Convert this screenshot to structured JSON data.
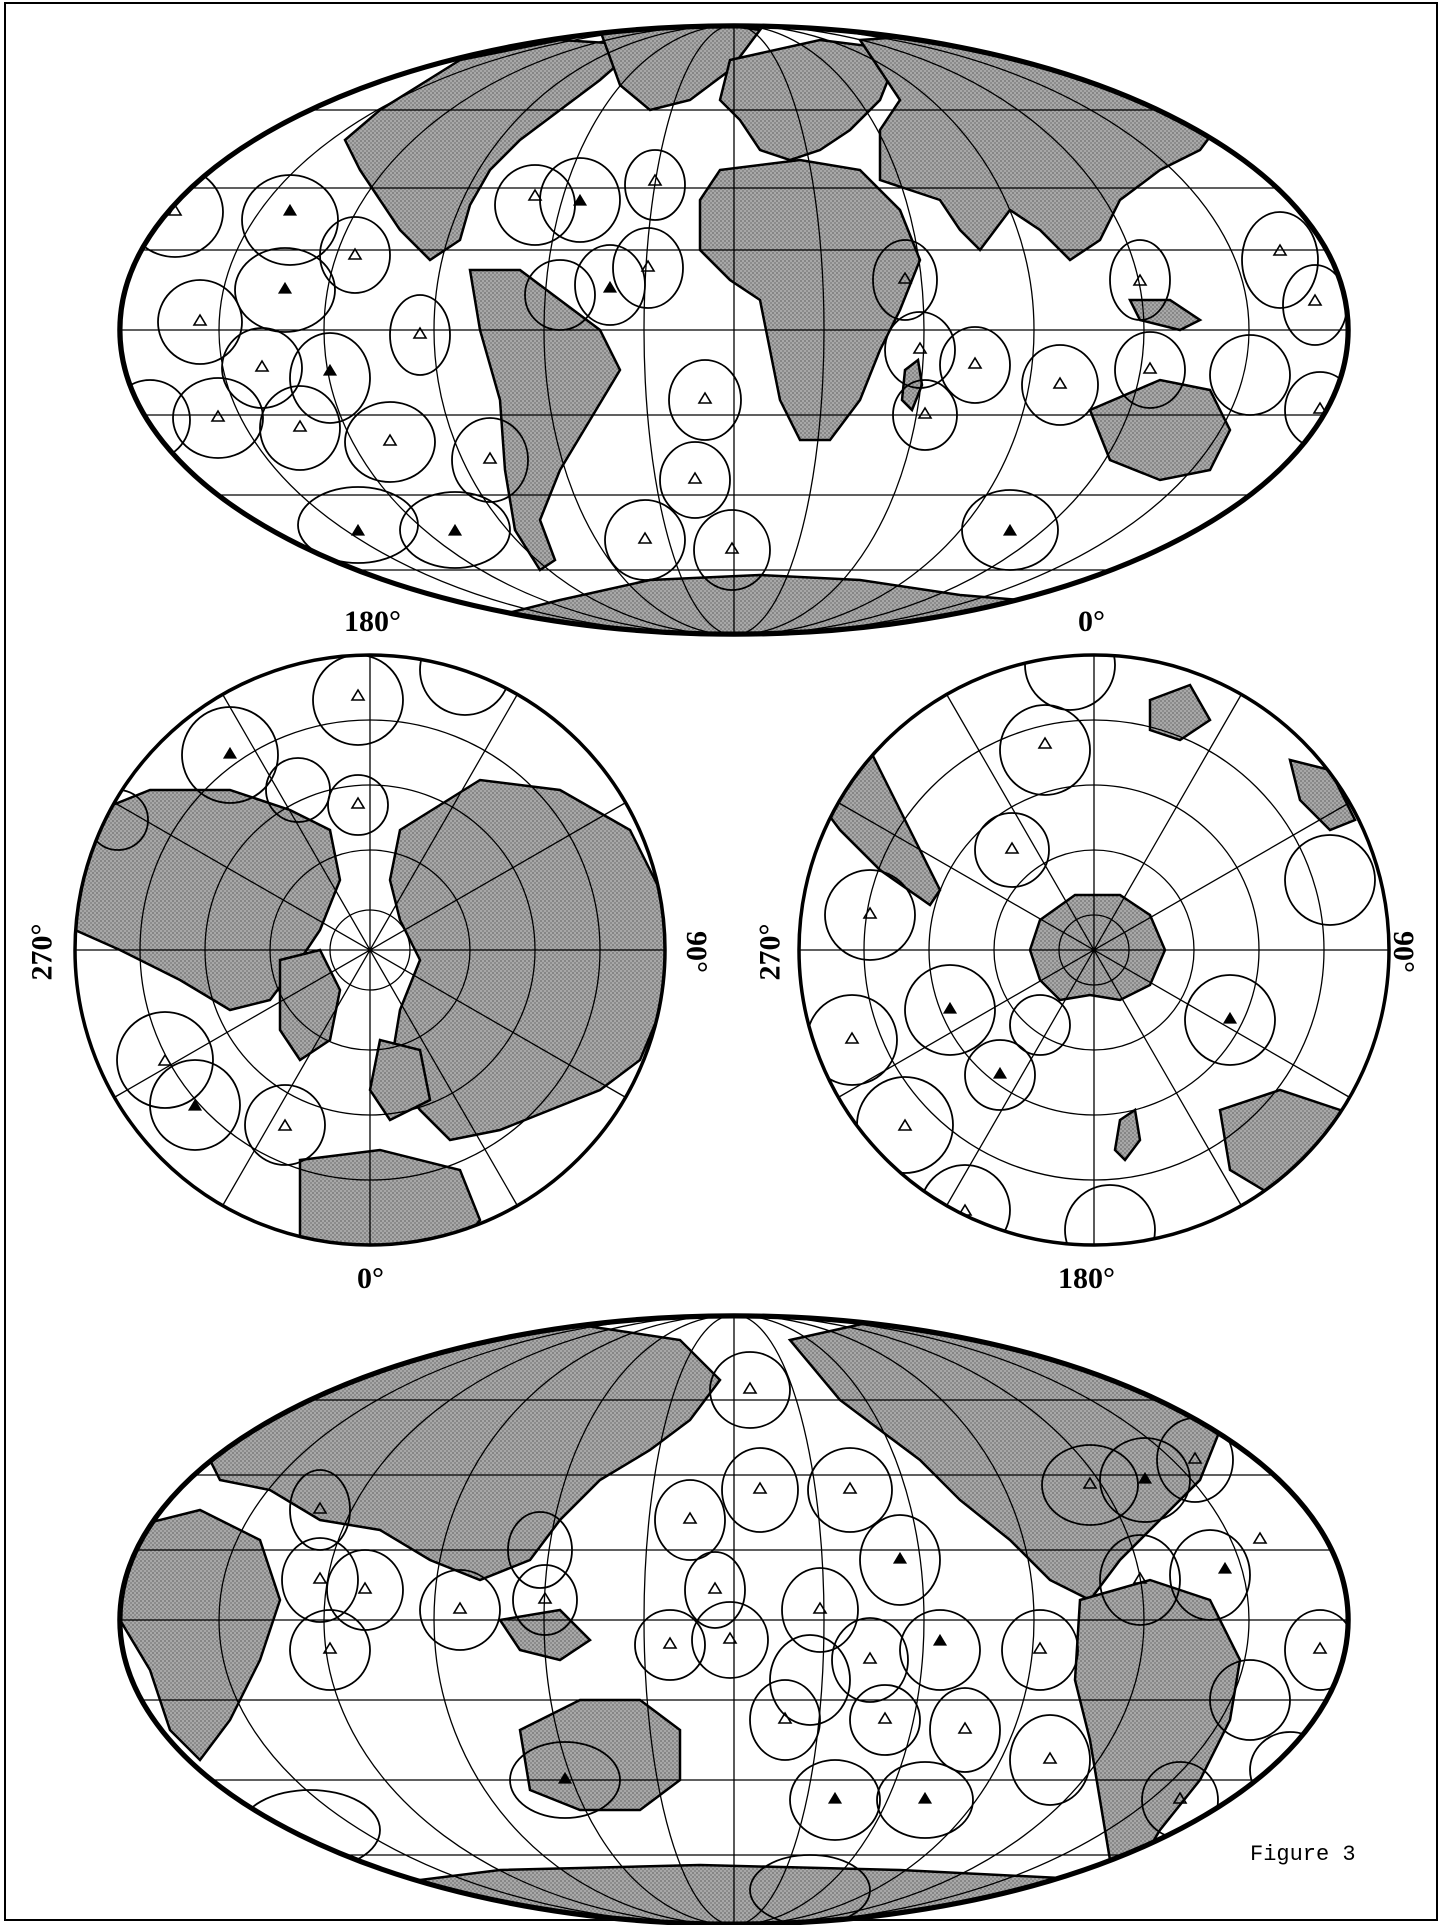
{
  "figure": {
    "caption": "Figure 3",
    "colors": {
      "land": "#9a9a9a",
      "ocean": "#ffffff",
      "line": "#000000"
    }
  },
  "polar_north": {
    "labels": {
      "top": "180°",
      "bottom": "0°",
      "left": "270°",
      "right": "90°"
    }
  },
  "polar_south": {
    "labels": {
      "top": "0°",
      "bottom": "180°",
      "left": "270°",
      "right": "90°"
    }
  },
  "legend": {
    "open_marker": "open-triangle",
    "filled_marker": "filled-triangle"
  }
}
